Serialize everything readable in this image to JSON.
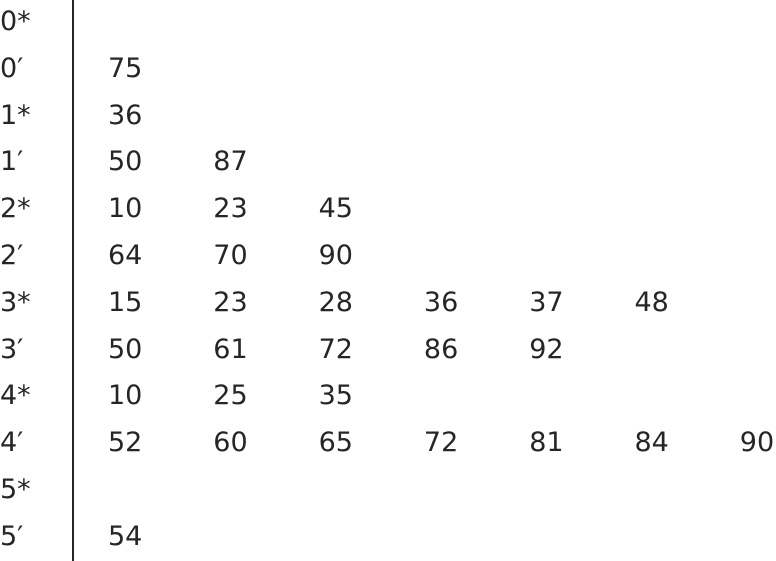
{
  "stem_and_leaf": {
    "rows": [
      {
        "stem": "0*",
        "leaves": []
      },
      {
        "stem": "0′",
        "leaves": [
          "75"
        ]
      },
      {
        "stem": "1*",
        "leaves": [
          "36"
        ]
      },
      {
        "stem": "1′",
        "leaves": [
          "50",
          "87"
        ]
      },
      {
        "stem": "2*",
        "leaves": [
          "10",
          "23",
          "45"
        ]
      },
      {
        "stem": "2′",
        "leaves": [
          "64",
          "70",
          "90"
        ]
      },
      {
        "stem": "3*",
        "leaves": [
          "15",
          "23",
          "28",
          "36",
          "37",
          "48"
        ]
      },
      {
        "stem": "3′",
        "leaves": [
          "50",
          "61",
          "72",
          "86",
          "92"
        ]
      },
      {
        "stem": "4*",
        "leaves": [
          "10",
          "25",
          "35"
        ]
      },
      {
        "stem": "4′",
        "leaves": [
          "52",
          "60",
          "65",
          "72",
          "81",
          "84",
          "90"
        ]
      },
      {
        "stem": "5*",
        "leaves": []
      },
      {
        "stem": "5′",
        "leaves": [
          "54"
        ]
      }
    ]
  }
}
